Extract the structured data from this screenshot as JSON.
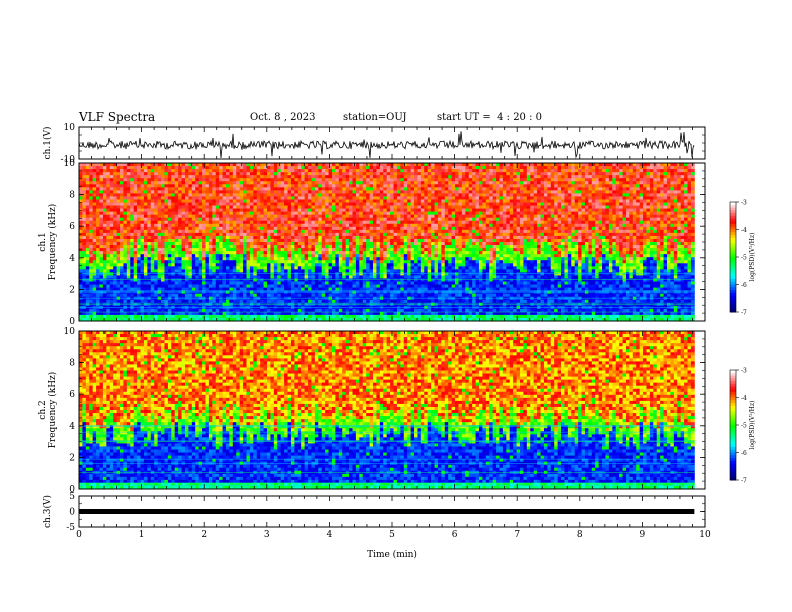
{
  "chart_data": {
    "type": "heatmap",
    "title": "VLF Spectra",
    "date": "Oct. 8 , 2023",
    "station": "station=OUJ",
    "start": "start UT =  4 : 20 : 0",
    "xlabel": "Time (min)",
    "xlim": [
      0,
      10
    ],
    "xticks": [
      "0",
      "1",
      "2",
      "3",
      "4",
      "5",
      "6",
      "7",
      "8",
      "9",
      "10"
    ],
    "panels": [
      {
        "kind": "waveform",
        "label": "ch.1(V)",
        "ylim": [
          -10,
          10
        ],
        "yticks": [
          "10",
          "-10"
        ],
        "trace_color": "#000000"
      },
      {
        "kind": "spectrogram",
        "label": "ch.1",
        "ylabel": "Frequency (kHz)",
        "ylim": [
          0,
          10
        ],
        "yticks": [
          "0",
          "2",
          "4",
          "6",
          "8",
          "10"
        ],
        "colorbar": {
          "label": "log(PSD)(V²/Hz)",
          "range": [
            -7,
            -3
          ],
          "ticks": [
            "-3",
            "-4",
            "-5",
            "-6",
            "-7"
          ]
        }
      },
      {
        "kind": "spectrogram",
        "label": "ch.2",
        "ylabel": "Frequency (kHz)",
        "ylim": [
          0,
          10
        ],
        "yticks": [
          "0",
          "2",
          "4",
          "6",
          "8",
          "10"
        ],
        "colorbar": {
          "label": "log(PSD)(V²/Hz)",
          "range": [
            -7,
            -3
          ],
          "ticks": [
            "-3",
            "-4",
            "-5",
            "-6",
            "-7"
          ]
        }
      },
      {
        "kind": "waveform",
        "label": "ch.3(V)",
        "ylim": [
          -5,
          5
        ],
        "yticks": [
          "5",
          "0",
          "-5"
        ],
        "trace_color": "#000000"
      }
    ],
    "data_extent_min": 9.83,
    "colormap": [
      "#000066",
      "#0000ff",
      "#00ffff",
      "#00ff00",
      "#ffff00",
      "#ff0000",
      "#ffffff"
    ]
  }
}
